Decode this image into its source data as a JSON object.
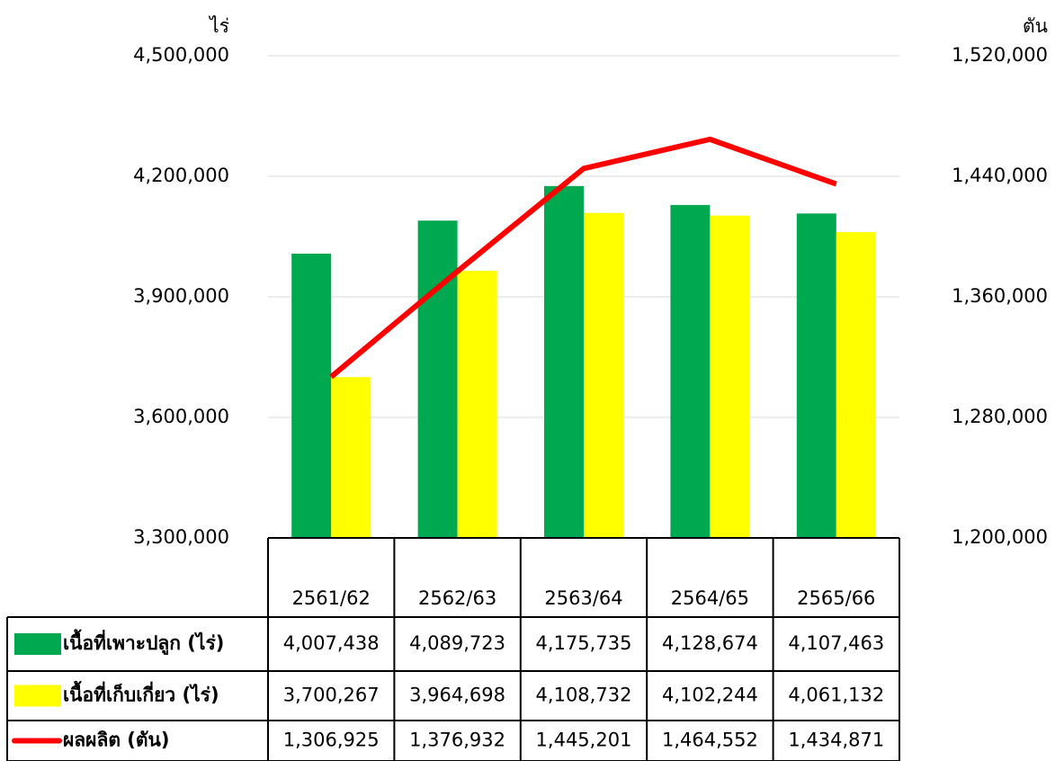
{
  "chart_data": {
    "type": "bar",
    "ylabel": "ไร่",
    "y2label": "ตัน",
    "categories": [
      "2561/62",
      "2562/63",
      "2563/64",
      "2564/65",
      "2565/66"
    ],
    "series": [
      {
        "name": "เนื้อที่เพาะปลูก (ไร่)",
        "type": "bar",
        "color": "#00a84f",
        "values": [
          4007438,
          4089723,
          4175735,
          4128674,
          4107463
        ],
        "value_labels": [
          "4,007,438",
          "4,089,723",
          "4,175,735",
          "4,128,674",
          "4,107,463"
        ]
      },
      {
        "name": "เนื้อที่เก็บเกี่ยว (ไร่)",
        "type": "bar",
        "color": "#ffff00",
        "values": [
          3700267,
          3964698,
          4108732,
          4102244,
          4061132
        ],
        "value_labels": [
          "3,700,267",
          "3,964,698",
          "4,108,732",
          "4,102,244",
          "4,061,132"
        ]
      },
      {
        "name": "ผลผลิต (ตัน)",
        "type": "line",
        "axis": "y2",
        "color": "#ff0000",
        "values": [
          1306925,
          1376932,
          1445201,
          1464552,
          1434871
        ],
        "value_labels": [
          "1,306,925",
          "1,376,932",
          "1,445,201",
          "1,464,552",
          "1,434,871"
        ]
      }
    ],
    "ylim": [
      3300000,
      4500000
    ],
    "yticks": [
      {
        "value": 3300000,
        "label": "3,300,000"
      },
      {
        "value": 3600000,
        "label": "3,600,000"
      },
      {
        "value": 3900000,
        "label": "3,900,000"
      },
      {
        "value": 4200000,
        "label": "4,200,000"
      },
      {
        "value": 4500000,
        "label": "4,500,000"
      }
    ],
    "y2lim": [
      1200000,
      1520000
    ],
    "y2ticks": [
      {
        "value": 1200000,
        "label": "1,200,000"
      },
      {
        "value": 1280000,
        "label": "1,280,000"
      },
      {
        "value": 1360000,
        "label": "1,360,000"
      },
      {
        "value": 1440000,
        "label": "1,440,000"
      },
      {
        "value": 1520000,
        "label": "1,520,000"
      }
    ],
    "grid": true
  }
}
